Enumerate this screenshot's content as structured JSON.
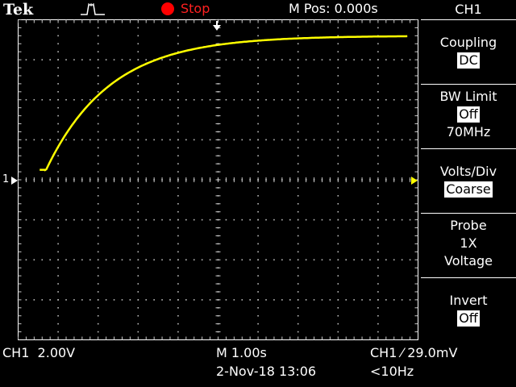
{
  "header": {
    "brand": "Tek",
    "trigger_icon": "pulse-icon",
    "run_state": "Stop",
    "run_state_color": "#ff0000",
    "m_pos": "M Pos: 0.000s"
  },
  "menu": {
    "title": "CH1",
    "items": [
      {
        "label": "Coupling",
        "value": "DC",
        "extra": ""
      },
      {
        "label": "BW Limit",
        "value": "Off",
        "extra": "70MHz"
      },
      {
        "label": "Volts/Div",
        "value": "Coarse",
        "extra": ""
      },
      {
        "label": "Probe",
        "value": "1X",
        "extra": "Voltage"
      },
      {
        "label": "Invert",
        "value": "Off",
        "extra": ""
      }
    ]
  },
  "footer": {
    "ch_scale": "CH1  2.00V",
    "time_scale": "M 1.00s",
    "date_time": "2-Nov-18 13:06",
    "trigger": "CH1 ⁄ 29.0mV",
    "freq": "<10Hz"
  },
  "ground_marker": "1",
  "trace_color": "#ffff00",
  "waveform": {
    "type": "line",
    "x_divisions": 10,
    "y_divisions": 8,
    "start_div": 0.7,
    "start_level_div": 0.25,
    "final_level_div": 3.6,
    "time_constant_div": 1.6
  }
}
